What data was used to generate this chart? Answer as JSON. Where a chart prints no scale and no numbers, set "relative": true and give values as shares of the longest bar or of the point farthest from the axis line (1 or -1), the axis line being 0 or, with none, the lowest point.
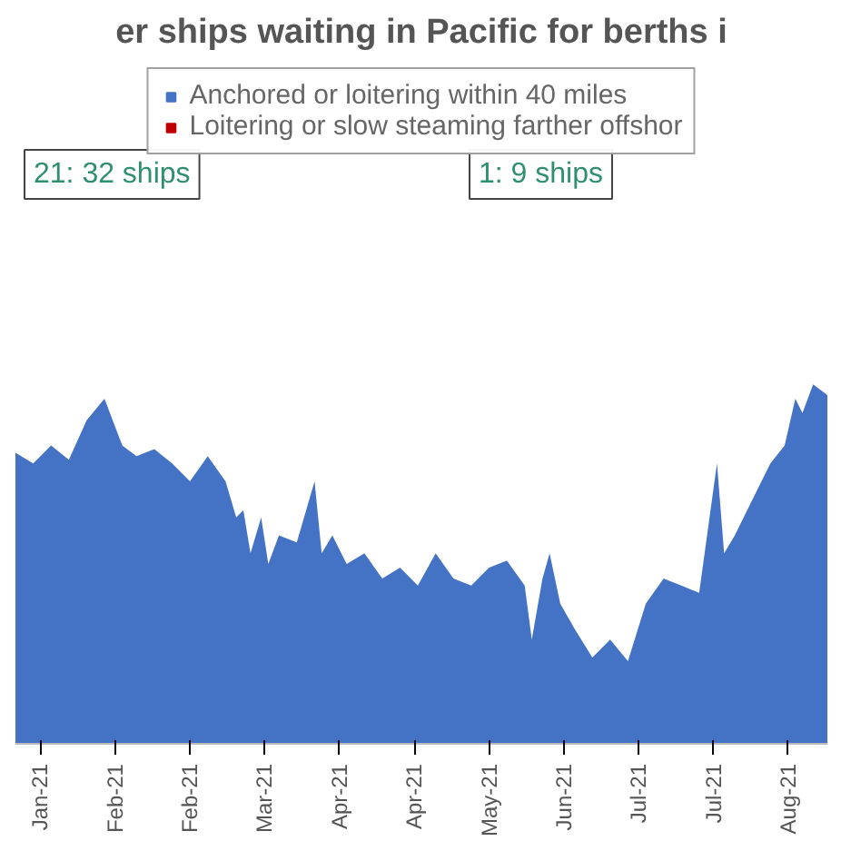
{
  "chart_data": {
    "type": "area",
    "title": "er ships waiting in Pacific for berths i",
    "relative": true,
    "legend": "top",
    "annotations": [
      "21: 32 ships",
      "1: 9 ships"
    ],
    "x": [
      "2021-01-08",
      "2021-01-13",
      "2021-01-18",
      "2021-01-23",
      "2021-01-28",
      "2021-02-02",
      "2021-02-07",
      "2021-02-11",
      "2021-02-16",
      "2021-02-21",
      "2021-02-26",
      "2021-03-03",
      "2021-03-08",
      "2021-03-11",
      "2021-03-13",
      "2021-03-15",
      "2021-03-18",
      "2021-03-20",
      "2021-03-23",
      "2021-03-28",
      "2021-04-02",
      "2021-04-04",
      "2021-04-07",
      "2021-04-11",
      "2021-04-16",
      "2021-04-21",
      "2021-04-26",
      "2021-05-01",
      "2021-05-06",
      "2021-05-11",
      "2021-05-16",
      "2021-05-21",
      "2021-05-26",
      "2021-05-31",
      "2021-06-02",
      "2021-06-05",
      "2021-06-07",
      "2021-06-10",
      "2021-06-14",
      "2021-06-19",
      "2021-06-24",
      "2021-06-29",
      "2021-07-04",
      "2021-07-09",
      "2021-07-14",
      "2021-07-19",
      "2021-07-24",
      "2021-07-26",
      "2021-07-29",
      "2021-08-03",
      "2021-08-08",
      "2021-08-12",
      "2021-08-15",
      "2021-08-17",
      "2021-08-20",
      "2021-08-24"
    ],
    "xlim": [
      "2021-01-08",
      "2021-08-24"
    ],
    "xticks": [
      {
        "value": "2021-01-15",
        "label": "Jan-21"
      },
      {
        "value": "2021-02-05",
        "label": "Feb-21"
      },
      {
        "value": "2021-02-26",
        "label": "Feb-21"
      },
      {
        "value": "2021-03-19",
        "label": "Mar-21"
      },
      {
        "value": "2021-04-09",
        "label": "Apr-21"
      },
      {
        "value": "2021-04-30",
        "label": "Apr-21"
      },
      {
        "value": "2021-05-21",
        "label": "May-21"
      },
      {
        "value": "2021-06-11",
        "label": "Jun-21"
      },
      {
        "value": "2021-07-02",
        "label": "Jul-21"
      },
      {
        "value": "2021-07-23",
        "label": "Jul-21"
      },
      {
        "value": "2021-08-13",
        "label": "Aug-21"
      }
    ],
    "series": [
      {
        "name": "Anchored or loitering within 40 miles",
        "color": "#4472c4",
        "values": [
          0.81,
          0.78,
          0.83,
          0.79,
          0.9,
          0.96,
          0.83,
          0.8,
          0.82,
          0.78,
          0.73,
          0.8,
          0.73,
          0.63,
          0.65,
          0.53,
          0.63,
          0.5,
          0.58,
          0.56,
          0.73,
          0.53,
          0.58,
          0.5,
          0.53,
          0.46,
          0.49,
          0.44,
          0.53,
          0.46,
          0.44,
          0.49,
          0.51,
          0.44,
          0.29,
          0.46,
          0.53,
          0.39,
          0.32,
          0.24,
          0.29,
          0.23,
          0.39,
          0.46,
          0.44,
          0.42,
          0.78,
          0.53,
          0.58,
          0.68,
          0.78,
          0.83,
          0.96,
          0.92,
          1,
          0.97
        ]
      },
      {
        "name": "Loitering or slow steaming farther offshor",
        "color": "#c00000",
        "values": [
          null,
          null,
          null,
          null,
          null,
          null,
          null,
          null,
          null,
          null,
          null,
          null,
          null,
          null,
          null,
          null,
          null,
          null,
          null,
          null,
          null,
          null,
          null,
          null,
          null,
          null,
          null,
          null,
          null,
          null,
          null,
          null,
          null,
          null,
          null,
          null,
          null,
          null,
          null,
          null,
          null,
          null,
          null,
          null,
          null,
          null,
          null,
          null,
          null,
          null,
          null,
          null,
          null,
          null,
          null,
          null
        ]
      }
    ]
  }
}
